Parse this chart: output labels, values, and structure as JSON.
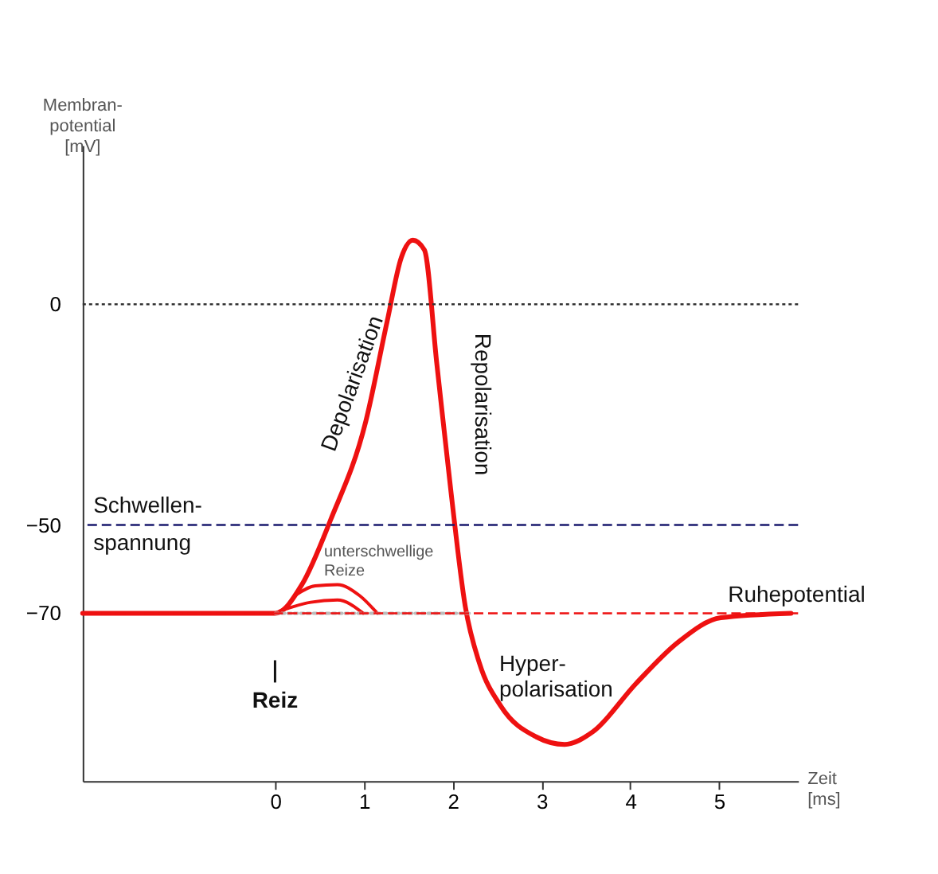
{
  "chart_data": {
    "type": "line",
    "xlabel": "Zeit\n[ms]",
    "ylabel": "Membran-\npotential\n[mV]",
    "xlim": [
      -2.17,
      5.89
    ],
    "ylim": [
      -108,
      36
    ],
    "xticks": [
      0,
      1,
      2,
      3,
      4,
      5
    ],
    "yticks": [
      0,
      -50,
      -70
    ],
    "grid": false,
    "marker": "none",
    "line_style": "solid",
    "series": [
      {
        "color": "#ee1111",
        "x": [
          -2.17,
          0,
          0.3,
          0.62,
          1.02,
          1.26,
          1.42,
          1.55,
          1.68,
          1.82,
          1.98,
          2.14,
          2.3,
          2.54,
          2.94,
          3.26,
          3.58,
          4.06,
          4.54,
          5.02,
          5.81
        ],
        "values": [
          -70,
          -70,
          -63.5,
          -49,
          -26.5,
          -3.9,
          10.6,
          14.5,
          12.3,
          -13.5,
          -42.6,
          -68.4,
          -81.3,
          -91,
          -98,
          -99.7,
          -96.8,
          -86,
          -76.5,
          -71,
          -70
        ]
      },
      {
        "color": "#ee1111",
        "x": [
          0.22,
          0.45,
          0.7,
          0.95,
          1.15
        ],
        "values": [
          -66,
          -63.8,
          -63.5,
          -66,
          -70
        ]
      },
      {
        "color": "#ee1111",
        "x": [
          0.05,
          0.4,
          0.7,
          0.99
        ],
        "values": [
          -69.5,
          -67.5,
          -67,
          -70
        ]
      },
      {
        "color": "#bbbbbb",
        "line_style": "dotted",
        "x": [
          0,
          2.2
        ],
        "values": [
          -70,
          -70
        ]
      }
    ],
    "ref_lines": [
      {
        "axis": "y",
        "value": 0,
        "color": "#333333",
        "line_style": "dotted"
      },
      {
        "axis": "y",
        "value": -50,
        "label": "Schwellen-\nspannung",
        "color": "#1a1a6e",
        "line_style": "dashed"
      },
      {
        "axis": "y",
        "value": -70,
        "label": "Ruhepotential",
        "color": "#ee1111",
        "line_style": "dashed"
      }
    ],
    "annotations": [
      "Depolarisation",
      "Repolarisation",
      {
        "text": "unterschwellige\nReize",
        "x": 0.55,
        "y": -56
      },
      "Hyper-\npolarisation",
      "Reiz"
    ]
  }
}
